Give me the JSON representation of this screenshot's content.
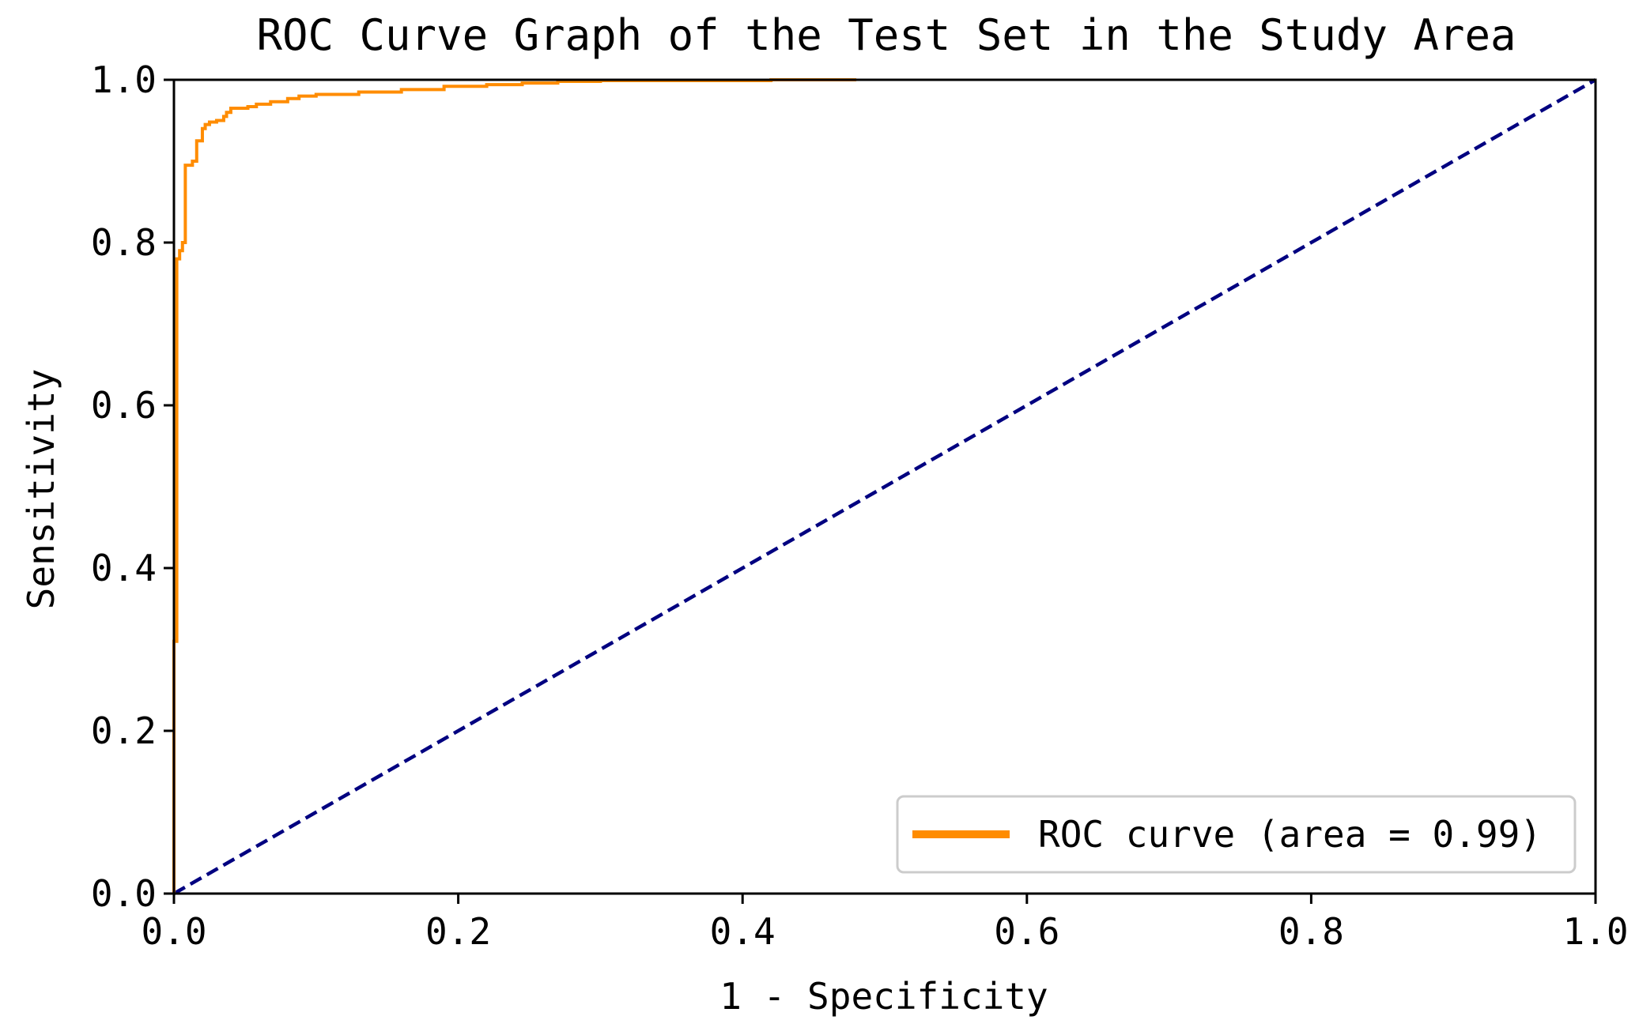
{
  "chart_data": {
    "type": "line",
    "title": "ROC Curve Graph of the Test Set in the Study Area",
    "xlabel": "1 - Specificity",
    "ylabel": "Sensitivity",
    "xlim": [
      0.0,
      1.0
    ],
    "ylim": [
      0.0,
      1.0
    ],
    "x_ticks": [
      "0.0",
      "0.2",
      "0.4",
      "0.6",
      "0.8",
      "1.0"
    ],
    "y_ticks": [
      "0.0",
      "0.2",
      "0.4",
      "0.6",
      "0.8",
      "1.0"
    ],
    "grid": false,
    "legend_position": "lower-right",
    "series": [
      {
        "name": "ROC curve (area = 0.99)",
        "color": "#FF8C00",
        "style": "solid",
        "x": [
          0.0,
          0.0,
          0.002,
          0.002,
          0.004,
          0.004,
          0.006,
          0.006,
          0.008,
          0.008,
          0.013,
          0.013,
          0.016,
          0.016,
          0.02,
          0.02,
          0.022,
          0.022,
          0.025,
          0.025,
          0.03,
          0.03,
          0.035,
          0.035,
          0.037,
          0.037,
          0.04,
          0.04,
          0.052,
          0.052,
          0.058,
          0.058,
          0.068,
          0.068,
          0.08,
          0.08,
          0.088,
          0.088,
          0.1,
          0.1,
          0.13,
          0.13,
          0.16,
          0.16,
          0.19,
          0.19,
          0.22,
          0.22,
          0.245,
          0.245,
          0.27,
          0.27,
          0.3,
          0.3,
          0.42,
          0.42,
          0.48
        ],
        "y": [
          0.0,
          0.31,
          0.31,
          0.78,
          0.78,
          0.79,
          0.79,
          0.8,
          0.8,
          0.895,
          0.895,
          0.9,
          0.9,
          0.925,
          0.925,
          0.94,
          0.94,
          0.945,
          0.945,
          0.948,
          0.948,
          0.95,
          0.95,
          0.955,
          0.955,
          0.96,
          0.96,
          0.965,
          0.965,
          0.967,
          0.967,
          0.97,
          0.97,
          0.973,
          0.973,
          0.977,
          0.977,
          0.98,
          0.98,
          0.982,
          0.982,
          0.985,
          0.985,
          0.988,
          0.988,
          0.992,
          0.992,
          0.994,
          0.994,
          0.996,
          0.996,
          0.998,
          0.998,
          0.999,
          0.999,
          1.0,
          1.0
        ]
      },
      {
        "color": "#000080",
        "style": "dashed",
        "x": [
          0.0,
          1.0
        ],
        "y": [
          0.0,
          1.0
        ]
      }
    ]
  }
}
